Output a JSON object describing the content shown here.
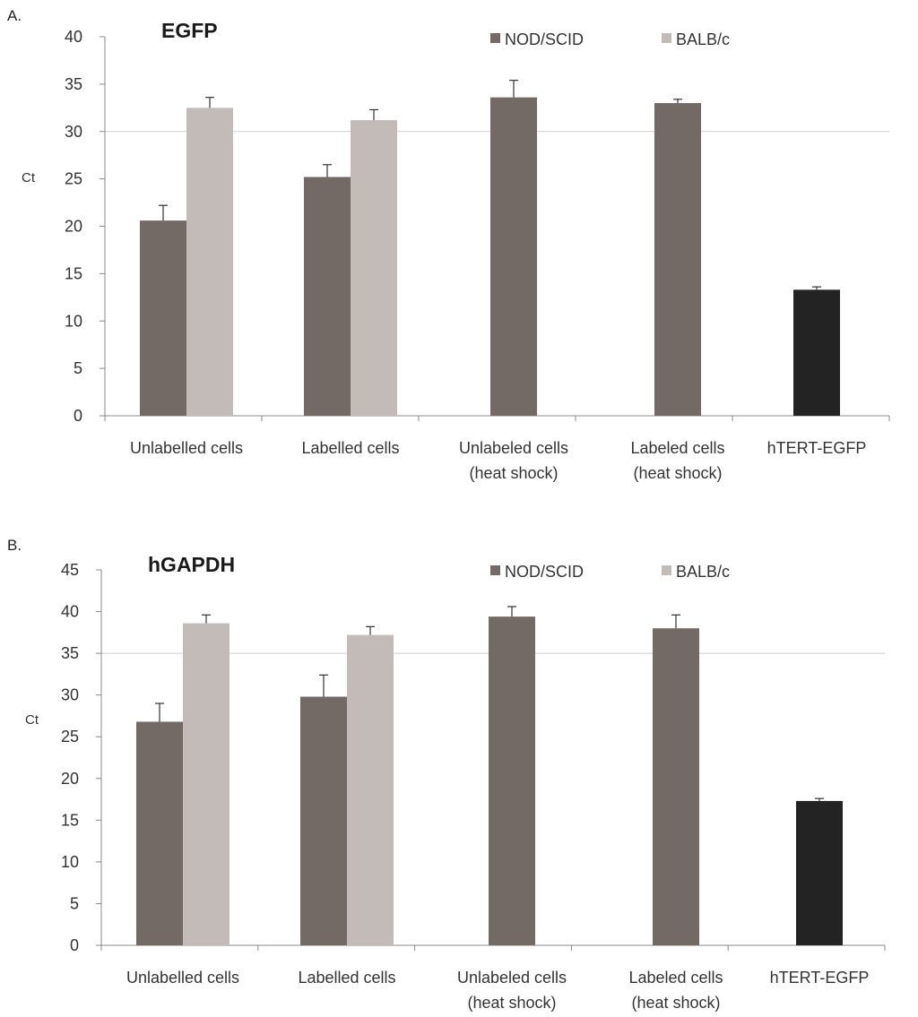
{
  "colors": {
    "nod_scid": "#736a66",
    "balb_c": "#c3bbb8",
    "htert": "#222322",
    "axis": "#888888",
    "refline": "#cfcfcf"
  },
  "chart_data": [
    {
      "panel_label": "A.",
      "type": "bar",
      "title": "EGFP",
      "ylabel": "Ct",
      "ylim": [
        0,
        40
      ],
      "yticks": [
        0,
        5,
        10,
        15,
        20,
        25,
        30,
        35,
        40
      ],
      "grid": false,
      "reference_line": 30,
      "legend": {
        "position": "top-right",
        "items": [
          {
            "name": "NOD/SCID",
            "color": "#736a66"
          },
          {
            "name": "BALB/c",
            "color": "#c3bbb8"
          }
        ]
      },
      "categories": [
        [
          "Unlabelled cells"
        ],
        [
          "Labelled cells"
        ],
        [
          "Unlabeled cells",
          "(heat shock)"
        ],
        [
          "Labeled cells",
          "(heat shock)"
        ],
        [
          "hTERT-EGFP"
        ]
      ],
      "series": [
        {
          "name": "NOD/SCID",
          "values": [
            20.6,
            25.2,
            33.6,
            33.0,
            null
          ],
          "errors": [
            1.6,
            1.3,
            1.8,
            0.4,
            null
          ]
        },
        {
          "name": "BALB/c",
          "values": [
            32.5,
            31.2,
            null,
            null,
            null
          ],
          "errors": [
            1.1,
            1.1,
            null,
            null,
            null
          ]
        },
        {
          "values": [
            null,
            null,
            null,
            null,
            13.3
          ],
          "errors": [
            null,
            null,
            null,
            null,
            0.3
          ]
        }
      ]
    },
    {
      "panel_label": "B.",
      "type": "bar",
      "title": "hGAPDH",
      "ylabel": "Ct",
      "ylim": [
        0,
        45
      ],
      "yticks": [
        0,
        5,
        10,
        15,
        20,
        25,
        30,
        35,
        40,
        45
      ],
      "grid": false,
      "reference_line": 35,
      "legend": {
        "position": "top-right",
        "items": [
          {
            "name": "NOD/SCID",
            "color": "#736a66"
          },
          {
            "name": "BALB/c",
            "color": "#c3bbb8"
          }
        ]
      },
      "categories": [
        [
          "Unlabelled cells"
        ],
        [
          "Labelled cells"
        ],
        [
          "Unlabeled cells",
          "(heat shock)"
        ],
        [
          "Labeled cells",
          "(heat shock)"
        ],
        [
          "hTERT-EGFP"
        ]
      ],
      "series": [
        {
          "name": "NOD/SCID",
          "values": [
            26.8,
            29.8,
            39.4,
            38.0,
            null
          ],
          "errors": [
            2.2,
            2.6,
            1.2,
            1.6,
            null
          ]
        },
        {
          "name": "BALB/c",
          "values": [
            38.6,
            37.2,
            null,
            null,
            null
          ],
          "errors": [
            1.0,
            1.0,
            null,
            null,
            null
          ]
        },
        {
          "values": [
            null,
            null,
            null,
            null,
            17.3
          ],
          "errors": [
            null,
            null,
            null,
            null,
            0.3
          ]
        }
      ]
    }
  ]
}
